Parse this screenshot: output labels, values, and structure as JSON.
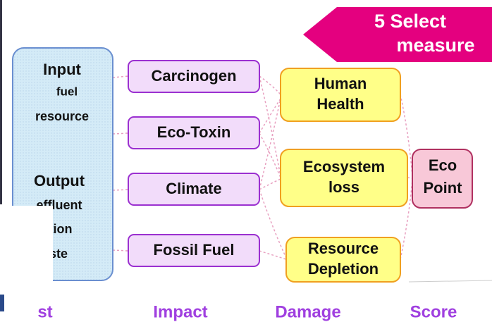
{
  "callout": {
    "lines": [
      "5 Select",
      "measure"
    ]
  },
  "inventory": {
    "lines": [
      "Input",
      "fuel",
      "resource",
      "Output",
      "effluent",
      "lution",
      "aste"
    ]
  },
  "impact": {
    "items": [
      "Carcinogen",
      "Eco-Toxin",
      "Climate",
      "Fossil Fuel"
    ]
  },
  "damage": {
    "items": [
      [
        "Human",
        "Health"
      ],
      [
        "Ecosystem",
        "loss"
      ],
      [
        "Resource",
        "Depletion"
      ]
    ]
  },
  "score": {
    "lines": [
      "Eco",
      "Point"
    ]
  },
  "footer": {
    "labels": [
      "st",
      "Impact",
      "Damage",
      "Score"
    ]
  }
}
